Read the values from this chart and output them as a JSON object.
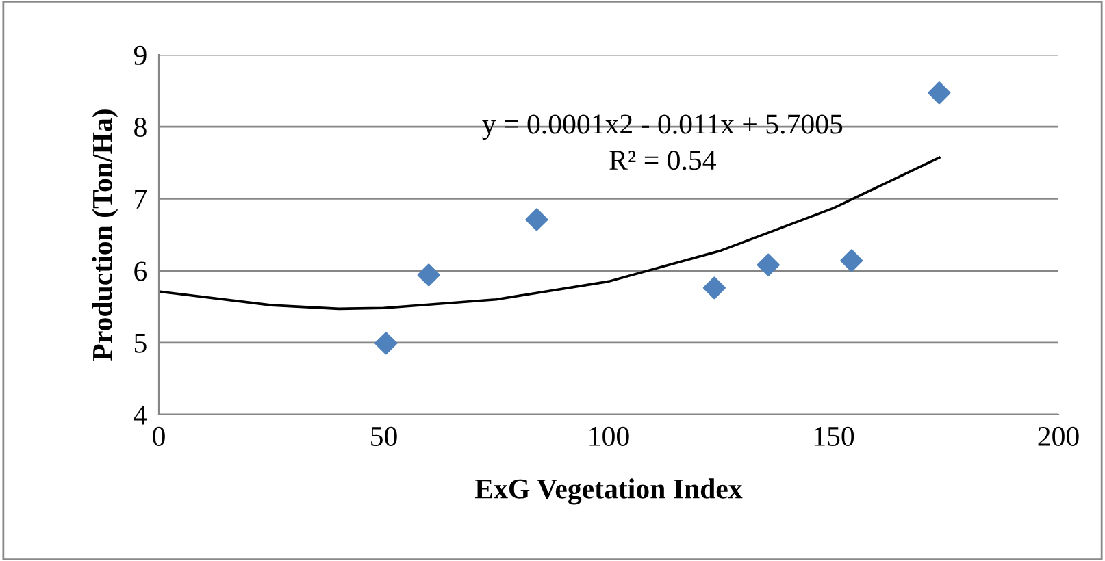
{
  "chart_data": {
    "type": "scatter",
    "xlabel": "ExG Vegetation Index",
    "ylabel": "Production (Ton/Ha)",
    "xlim": [
      0,
      200
    ],
    "xticks": [
      0,
      50,
      100,
      150,
      200
    ],
    "ylim": [
      4,
      9
    ],
    "yticks": [
      4,
      5,
      6,
      7,
      8,
      9
    ],
    "grid": "y",
    "marker": "diamond",
    "series": [
      {
        "color": "#4f81bd",
        "x": [
          50.5,
          60,
          84,
          123.5,
          135.5,
          154,
          173.5
        ],
        "values": [
          4.99,
          5.94,
          6.71,
          5.76,
          6.08,
          6.14,
          8.47
        ]
      },
      {
        "type": "line",
        "color": "#000000",
        "marker": "none",
        "x": [
          0,
          25,
          40,
          50,
          75,
          100,
          125,
          150,
          173.5
        ],
        "values": [
          5.71,
          5.52,
          5.47,
          5.48,
          5.6,
          5.85,
          6.28,
          6.87,
          7.57
        ]
      }
    ],
    "annotations": [
      "y = 0.0001x2 - 0.011x + 5.7005",
      "R² = 0.54"
    ]
  }
}
